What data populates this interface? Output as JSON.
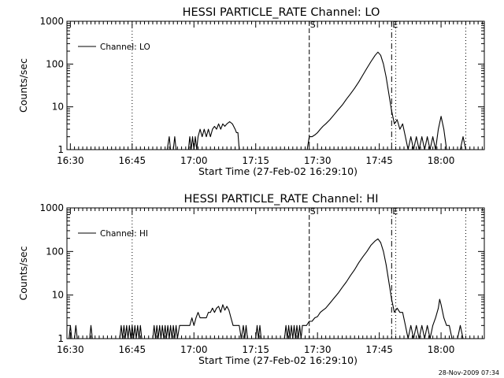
{
  "footer": {
    "timestamp": "28-Nov-2009 07:34"
  },
  "chart_data": [
    {
      "type": "line",
      "title": "HESSI PARTICLE_RATE Channel: LO",
      "xlabel": "Start Time (27-Feb-02 16:29:10)",
      "ylabel": "Counts/sec",
      "x_unit": "time",
      "xlim": [
        "16:29:10",
        "18:10:30"
      ],
      "ylim": [
        1,
        1000
      ],
      "yscale": "log",
      "x_ticks": [
        "16:30",
        "16:45",
        "17:00",
        "17:15",
        "17:30",
        "17:45",
        "18:00"
      ],
      "y_ticks": [
        {
          "value": 1,
          "label": "1"
        },
        {
          "value": 10,
          "label": "10"
        },
        {
          "value": 100,
          "label": "100"
        },
        {
          "value": 1000,
          "label": "1000"
        }
      ],
      "legend": {
        "position": "top-left",
        "label": "Channel: LO"
      },
      "vlines": [
        {
          "x": "16:45",
          "style": "dotted",
          "label": ""
        },
        {
          "x": "17:28",
          "style": "dashed",
          "label": "S"
        },
        {
          "x": "17:48",
          "style": "dashdot",
          "label": "E"
        },
        {
          "x": "17:49",
          "style": "dotted",
          "label": ""
        },
        {
          "x": "18:06",
          "style": "dotted",
          "label": ""
        }
      ],
      "series": [
        {
          "name": "Channel: LO",
          "points": [
            [
              "16:53:30",
              1
            ],
            [
              "16:54:00",
              2
            ],
            [
              "16:54:20",
              1
            ],
            [
              "16:55:00",
              1
            ],
            [
              "16:55:20",
              2
            ],
            [
              "16:55:40",
              1
            ],
            [
              "16:58:40",
              1
            ],
            [
              "16:59:00",
              2
            ],
            [
              "16:59:20",
              1
            ],
            [
              "16:59:40",
              2
            ],
            [
              "17:00:00",
              1
            ],
            [
              "17:00:20",
              2
            ],
            [
              "17:00:40",
              1
            ],
            [
              "17:01:00",
              2
            ],
            [
              "17:01:30",
              3
            ],
            [
              "17:02:00",
              2
            ],
            [
              "17:02:30",
              3
            ],
            [
              "17:03:00",
              2
            ],
            [
              "17:03:30",
              3
            ],
            [
              "17:04:00",
              2
            ],
            [
              "17:04:30",
              3
            ],
            [
              "17:05:00",
              3.5
            ],
            [
              "17:05:30",
              3
            ],
            [
              "17:06:00",
              4
            ],
            [
              "17:06:30",
              3
            ],
            [
              "17:07:00",
              4
            ],
            [
              "17:07:30",
              3.5
            ],
            [
              "17:08:00",
              4
            ],
            [
              "17:08:40",
              4.5
            ],
            [
              "17:09:20",
              4
            ],
            [
              "17:10:00",
              3
            ],
            [
              "17:10:20",
              2.5
            ],
            [
              "17:10:40",
              2.5
            ],
            [
              "17:11:00",
              1
            ],
            [
              "17:27:30",
              1
            ],
            [
              "17:28:00",
              2
            ],
            [
              "17:28:40",
              2
            ],
            [
              "17:29:20",
              2.2
            ],
            [
              "17:30:00",
              2.5
            ],
            [
              "17:30:40",
              3
            ],
            [
              "17:31:20",
              3.5
            ],
            [
              "17:32:00",
              4
            ],
            [
              "17:33:00",
              5
            ],
            [
              "17:34:00",
              6.5
            ],
            [
              "17:35:00",
              8.5
            ],
            [
              "17:36:00",
              11
            ],
            [
              "17:37:00",
              15
            ],
            [
              "17:38:00",
              20
            ],
            [
              "17:39:00",
              27
            ],
            [
              "17:40:00",
              38
            ],
            [
              "17:41:00",
              55
            ],
            [
              "17:42:00",
              80
            ],
            [
              "17:43:00",
              115
            ],
            [
              "17:44:00",
              160
            ],
            [
              "17:44:40",
              190
            ],
            [
              "17:45:20",
              160
            ],
            [
              "17:46:00",
              100
            ],
            [
              "17:46:40",
              50
            ],
            [
              "17:47:20",
              20
            ],
            [
              "17:48:00",
              8
            ],
            [
              "17:48:40",
              4
            ],
            [
              "17:49:20",
              5
            ],
            [
              "17:50:00",
              3
            ],
            [
              "17:50:40",
              4
            ],
            [
              "17:51:20",
              2
            ],
            [
              "17:52:00",
              1
            ],
            [
              "17:52:40",
              2
            ],
            [
              "17:53:20",
              1
            ],
            [
              "17:54:00",
              2
            ],
            [
              "17:54:40",
              1
            ],
            [
              "17:55:20",
              2
            ],
            [
              "17:56:00",
              1
            ],
            [
              "17:56:40",
              2
            ],
            [
              "17:57:20",
              1
            ],
            [
              "17:58:00",
              2
            ],
            [
              "17:58:40",
              1
            ],
            [
              "17:59:20",
              3
            ],
            [
              "18:00:00",
              6
            ],
            [
              "18:00:40",
              3
            ],
            [
              "18:01:20",
              1
            ],
            [
              "18:04:40",
              1
            ],
            [
              "18:05:20",
              2
            ],
            [
              "18:06:00",
              1
            ]
          ]
        }
      ]
    },
    {
      "type": "line",
      "title": "HESSI PARTICLE_RATE Channel: HI",
      "xlabel": "Start Time (27-Feb-02 16:29:10)",
      "ylabel": "Counts/sec",
      "x_unit": "time",
      "xlim": [
        "16:29:10",
        "18:10:30"
      ],
      "ylim": [
        1,
        1000
      ],
      "yscale": "log",
      "x_ticks": [
        "16:30",
        "16:45",
        "17:00",
        "17:15",
        "17:30",
        "17:45",
        "18:00"
      ],
      "y_ticks": [
        {
          "value": 1,
          "label": "1"
        },
        {
          "value": 10,
          "label": "10"
        },
        {
          "value": 100,
          "label": "100"
        },
        {
          "value": 1000,
          "label": "1000"
        }
      ],
      "legend": {
        "position": "top-left",
        "label": "Channel: HI"
      },
      "vlines": [
        {
          "x": "16:45",
          "style": "dotted",
          "label": ""
        },
        {
          "x": "17:28",
          "style": "dashed",
          "label": "S"
        },
        {
          "x": "17:48",
          "style": "dashdot",
          "label": "E"
        },
        {
          "x": "17:49",
          "style": "dotted",
          "label": ""
        },
        {
          "x": "18:06",
          "style": "dotted",
          "label": ""
        }
      ],
      "series": [
        {
          "name": "Channel: HI",
          "points": [
            [
              "16:29:40",
              1
            ],
            [
              "16:30:00",
              2
            ],
            [
              "16:30:20",
              1
            ],
            [
              "16:31:00",
              1
            ],
            [
              "16:31:20",
              2
            ],
            [
              "16:31:40",
              1
            ],
            [
              "16:34:40",
              1
            ],
            [
              "16:35:00",
              2
            ],
            [
              "16:35:20",
              1
            ],
            [
              "16:42:00",
              1
            ],
            [
              "16:42:20",
              2
            ],
            [
              "16:42:40",
              1
            ],
            [
              "16:43:00",
              2
            ],
            [
              "16:43:20",
              1
            ],
            [
              "16:43:40",
              2
            ],
            [
              "16:44:00",
              1
            ],
            [
              "16:44:20",
              2
            ],
            [
              "16:44:40",
              1
            ],
            [
              "16:45:00",
              2
            ],
            [
              "16:45:20",
              1
            ],
            [
              "16:45:40",
              2
            ],
            [
              "16:46:00",
              1
            ],
            [
              "16:46:20",
              2
            ],
            [
              "16:46:40",
              1
            ],
            [
              "16:47:00",
              2
            ],
            [
              "16:47:20",
              1
            ],
            [
              "16:50:00",
              1
            ],
            [
              "16:50:20",
              2
            ],
            [
              "16:50:40",
              1
            ],
            [
              "16:51:00",
              2
            ],
            [
              "16:51:20",
              1
            ],
            [
              "16:51:40",
              2
            ],
            [
              "16:52:00",
              1
            ],
            [
              "16:52:20",
              2
            ],
            [
              "16:52:40",
              1
            ],
            [
              "16:53:00",
              2
            ],
            [
              "16:53:20",
              1
            ],
            [
              "16:53:40",
              2
            ],
            [
              "16:54:00",
              1
            ],
            [
              "16:54:20",
              2
            ],
            [
              "16:54:40",
              1
            ],
            [
              "16:55:00",
              2
            ],
            [
              "16:55:20",
              1
            ],
            [
              "16:55:40",
              2
            ],
            [
              "16:56:00",
              1
            ],
            [
              "16:56:30",
              2
            ],
            [
              "16:59:00",
              2
            ],
            [
              "16:59:30",
              3
            ],
            [
              "17:00:00",
              2
            ],
            [
              "17:00:30",
              3
            ],
            [
              "17:01:00",
              4
            ],
            [
              "17:01:30",
              3
            ],
            [
              "17:02:00",
              3
            ],
            [
              "17:02:30",
              3
            ],
            [
              "17:03:00",
              3
            ],
            [
              "17:03:30",
              4
            ],
            [
              "17:04:00",
              4
            ],
            [
              "17:04:30",
              5
            ],
            [
              "17:05:00",
              4
            ],
            [
              "17:05:30",
              5
            ],
            [
              "17:06:00",
              5.5
            ],
            [
              "17:06:30",
              4
            ],
            [
              "17:07:00",
              6
            ],
            [
              "17:07:30",
              4.5
            ],
            [
              "17:08:00",
              5.5
            ],
            [
              "17:08:30",
              4.5
            ],
            [
              "17:09:00",
              3
            ],
            [
              "17:09:30",
              2
            ],
            [
              "17:10:00",
              2
            ],
            [
              "17:10:30",
              2
            ],
            [
              "17:11:00",
              2
            ],
            [
              "17:11:30",
              1
            ],
            [
              "17:12:00",
              2
            ],
            [
              "17:12:20",
              1
            ],
            [
              "17:12:40",
              2
            ],
            [
              "17:13:00",
              1
            ],
            [
              "17:15:00",
              1
            ],
            [
              "17:15:20",
              2
            ],
            [
              "17:15:40",
              1
            ],
            [
              "17:16:00",
              2
            ],
            [
              "17:16:20",
              1
            ],
            [
              "17:16:40",
              1
            ],
            [
              "17:22:00",
              1
            ],
            [
              "17:22:20",
              2
            ],
            [
              "17:22:40",
              1
            ],
            [
              "17:23:00",
              2
            ],
            [
              "17:23:20",
              1
            ],
            [
              "17:23:40",
              2
            ],
            [
              "17:24:00",
              1
            ],
            [
              "17:24:20",
              2
            ],
            [
              "17:24:40",
              1
            ],
            [
              "17:25:00",
              2
            ],
            [
              "17:25:20",
              1
            ],
            [
              "17:25:40",
              2
            ],
            [
              "17:26:00",
              1
            ],
            [
              "17:26:20",
              2
            ],
            [
              "17:26:40",
              2
            ],
            [
              "17:27:20",
              2
            ],
            [
              "17:28:00",
              2.5
            ],
            [
              "17:28:40",
              2.5
            ],
            [
              "17:29:20",
              3
            ],
            [
              "17:30:00",
              3.2
            ],
            [
              "17:30:40",
              4
            ],
            [
              "17:31:20",
              4.5
            ],
            [
              "17:32:00",
              5
            ],
            [
              "17:33:00",
              6.5
            ],
            [
              "17:34:00",
              8.5
            ],
            [
              "17:35:00",
              11
            ],
            [
              "17:36:00",
              15
            ],
            [
              "17:37:00",
              20
            ],
            [
              "17:38:00",
              28
            ],
            [
              "17:39:00",
              38
            ],
            [
              "17:40:00",
              55
            ],
            [
              "17:41:00",
              75
            ],
            [
              "17:42:00",
              100
            ],
            [
              "17:43:00",
              140
            ],
            [
              "17:44:00",
              175
            ],
            [
              "17:44:40",
              195
            ],
            [
              "17:45:20",
              160
            ],
            [
              "17:46:00",
              100
            ],
            [
              "17:46:40",
              50
            ],
            [
              "17:47:20",
              20
            ],
            [
              "17:48:00",
              8
            ],
            [
              "17:48:40",
              4
            ],
            [
              "17:49:20",
              5
            ],
            [
              "17:50:00",
              4
            ],
            [
              "17:50:40",
              4
            ],
            [
              "17:51:20",
              2
            ],
            [
              "17:52:00",
              1
            ],
            [
              "17:52:40",
              2
            ],
            [
              "17:53:20",
              1
            ],
            [
              "17:54:00",
              2
            ],
            [
              "17:54:40",
              1
            ],
            [
              "17:55:20",
              2
            ],
            [
              "17:56:00",
              1
            ],
            [
              "17:56:40",
              2
            ],
            [
              "17:57:20",
              1
            ],
            [
              "17:58:00",
              2
            ],
            [
              "17:58:40",
              3
            ],
            [
              "17:59:20",
              5
            ],
            [
              "17:59:40",
              8
            ],
            [
              "18:00:00",
              6
            ],
            [
              "18:00:40",
              3
            ],
            [
              "18:01:20",
              2
            ],
            [
              "18:02:00",
              2
            ],
            [
              "18:02:40",
              1
            ],
            [
              "18:03:20",
              1
            ],
            [
              "18:04:00",
              1
            ],
            [
              "18:04:40",
              2
            ],
            [
              "18:05:20",
              1
            ]
          ]
        }
      ]
    }
  ]
}
